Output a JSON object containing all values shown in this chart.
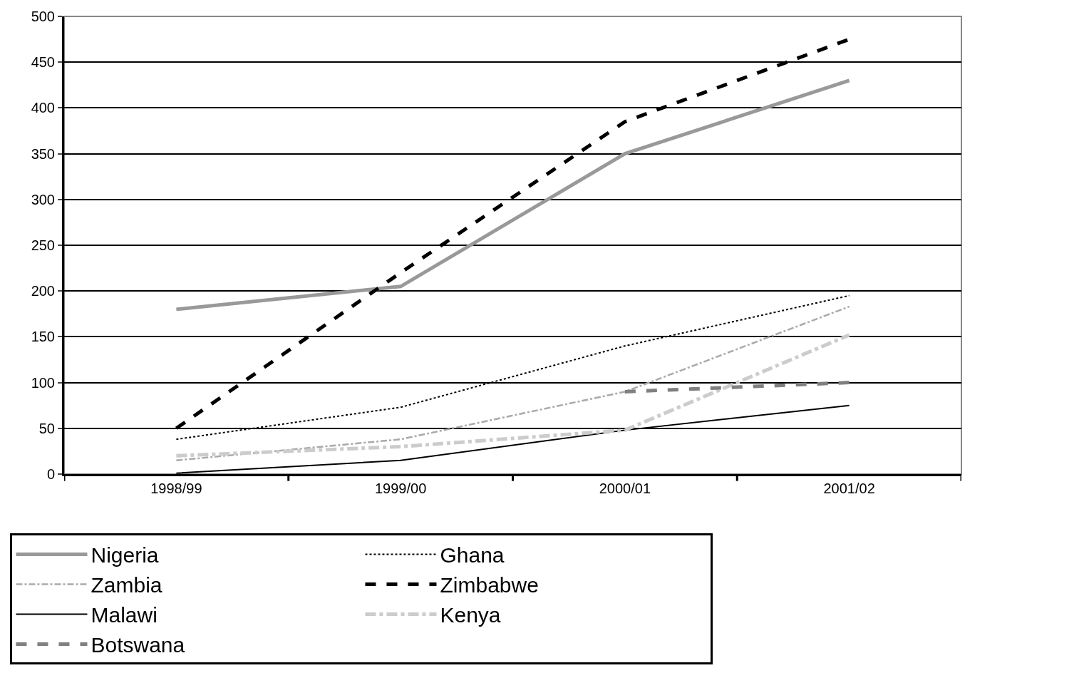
{
  "chart_data": {
    "type": "line",
    "categories": [
      "1998/99",
      "1999/00",
      "2000/01",
      "2001/02"
    ],
    "ylim": [
      0,
      500
    ],
    "yticks": [
      0,
      50,
      100,
      150,
      200,
      250,
      300,
      350,
      400,
      450,
      500
    ],
    "grid": "y",
    "legend": "bottom",
    "marker": "none",
    "series": [
      {
        "name": "Nigeria",
        "color": "#999999",
        "line_style": "solid",
        "values": [
          180,
          205,
          350,
          430
        ]
      },
      {
        "name": "Ghana",
        "color": "#000000",
        "line_style": "dotted",
        "values": [
          38,
          73,
          140,
          195
        ]
      },
      {
        "name": "Zambia",
        "color": "#aaaaaa",
        "line_style": "dashdot",
        "values": [
          15,
          38,
          90,
          183
        ]
      },
      {
        "name": "Zimbabwe",
        "color": "#000000",
        "line_style": "dashed",
        "values": [
          50,
          220,
          385,
          475
        ]
      },
      {
        "name": "Malawi",
        "color": "#000000",
        "line_style": "solid",
        "values": [
          1,
          15,
          48,
          75
        ]
      },
      {
        "name": "Kenya",
        "color": "#cccccc",
        "line_style": "dashdot",
        "values": [
          20,
          30,
          48,
          152
        ]
      },
      {
        "name": "Botswana",
        "color": "#808080",
        "line_style": "dashed",
        "values": [
          null,
          null,
          90,
          100
        ]
      }
    ]
  }
}
